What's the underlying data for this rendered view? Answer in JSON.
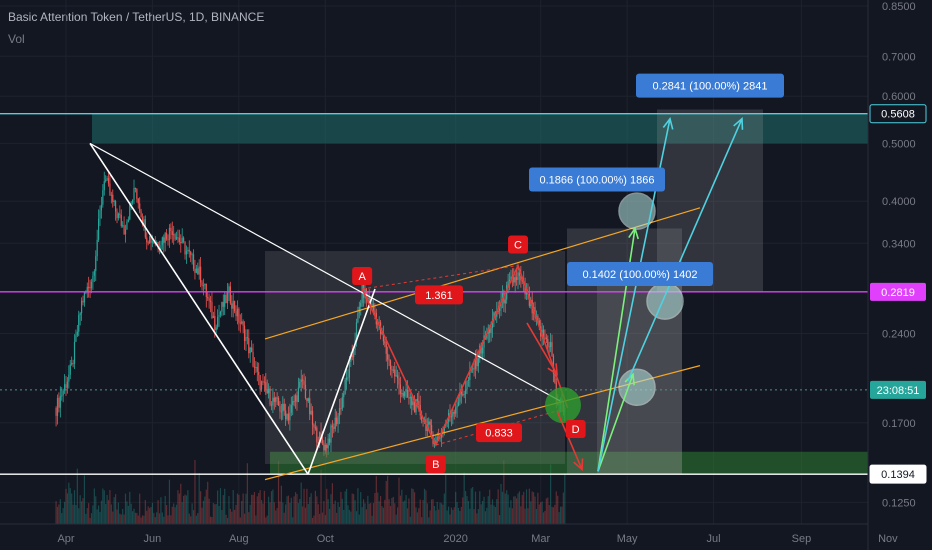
{
  "header": {
    "title": "Basic Attention Token / TetherUS, 1D, BINANCE",
    "volume_label": "Vol"
  },
  "colors": {
    "background": "#131722",
    "bull_candle": "#26a69a",
    "bear_candle": "#ef5350",
    "grid": "#1e222d",
    "axis_text": "#787b86",
    "channel": "#f5a623",
    "zigzag": "#e53935",
    "white_line": "#ffffff",
    "target_arrow_cyan": "#4fd1e0",
    "target_arrow_green": "#7cf07c",
    "resistance_cyan": "#4fd1e0",
    "magenta_line": "#e040fb",
    "label_blue": "#3a7bd5",
    "label_red": "#e0161b"
  },
  "chart_data": {
    "type": "candlestick",
    "scale": "log",
    "ylim": [
      0.115,
      0.87
    ],
    "y_ticks": [
      "0.8500",
      "0.7000",
      "0.6000",
      "0.5000",
      "0.4000",
      "0.3400",
      "0.2400",
      "0.1700",
      "0.1250"
    ],
    "x_ticks": [
      "Apr",
      "Jun",
      "Aug",
      "Oct",
      "2020",
      "Mar",
      "May",
      "Jul",
      "Sep",
      "Nov"
    ],
    "price_labels": [
      {
        "text": "0.5608",
        "value": 0.5608,
        "color": "#4fd1e0",
        "style": "outline"
      },
      {
        "text": "0.2819",
        "value": 0.2819,
        "color": "#e040fb",
        "style": "filled"
      },
      {
        "text": "23:08:51",
        "value": 0.193,
        "color": "#26a69a",
        "style": "filled"
      },
      {
        "text": "0.1394",
        "value": 0.1394,
        "color": "#ffffff",
        "style": "outline-dark"
      }
    ],
    "pattern_points": [
      {
        "label": "A",
        "date": "2019-10-27",
        "price": 0.285
      },
      {
        "label": "B",
        "date": "2019-12-18",
        "price": 0.156
      },
      {
        "label": "C",
        "date": "2020-02-14",
        "price": 0.312
      },
      {
        "label": "D",
        "date": "2020-03-20",
        "price": 0.18
      }
    ],
    "ratios": [
      {
        "text": "1.361",
        "date": "2019-12-25",
        "price": 0.278
      },
      {
        "text": "0.833",
        "date": "2020-01-20",
        "price": 0.164
      }
    ],
    "targets": [
      {
        "text": "0.1866 (100.00%) 1866",
        "date": "2020-05-20",
        "price": 0.435
      },
      {
        "text": "0.1402 (100.00%) 1402",
        "date": "2020-06-08",
        "price": 0.302
      },
      {
        "text": "0.2841 (100.00%) 2841",
        "date": "2020-06-28",
        "price": 0.625
      }
    ],
    "levels": [
      {
        "name": "resistance",
        "price": 0.5608
      },
      {
        "name": "pivot",
        "price": 0.2819
      },
      {
        "name": "support",
        "price": 0.1394
      }
    ]
  }
}
